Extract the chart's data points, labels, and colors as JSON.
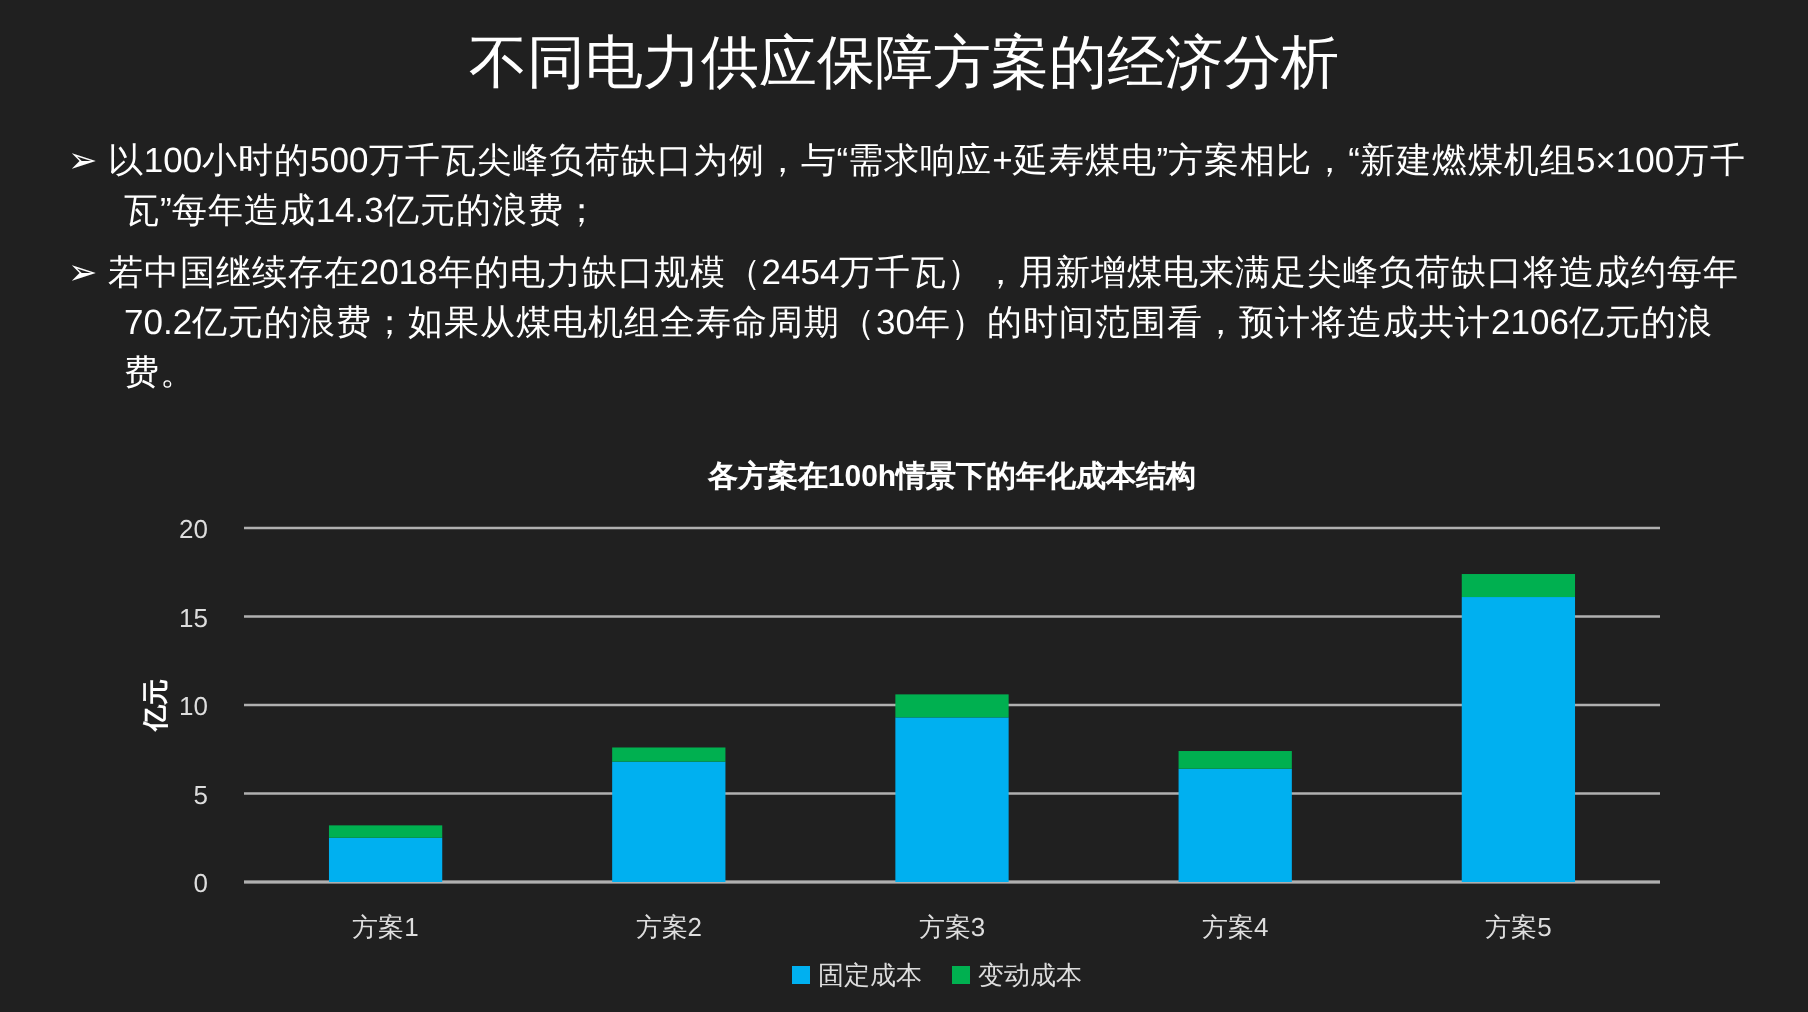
{
  "chart_data": {
    "type": "bar",
    "title": "不同电力供应保障方案的经济分析",
    "subtitle": "各方案在100h情景下的年化成本结构",
    "annotations": [
      "➢ 以100小时的500万千瓦尖峰负荷缺口为例，与“需求响应+延寿煤电”方案相比，“新建燃煤机组5×100万千瓦”每年造成14.3亿元的浪费；",
      "➢ 若中国继续存在2018年的电力缺口规模（2454万千瓦），用新增煤电来满足尖峰负荷缺口将造成约每年70.2亿元的浪费；如果从煤电机组全寿命周期（30年）的时间范围看，预计将造成共计2106亿元的浪费。"
    ],
    "ylabel": "亿元",
    "categories": [
      "方案1",
      "方案2",
      "方案3",
      "方案4",
      "方案5"
    ],
    "stacked": true,
    "series": [
      {
        "name": "固定成本",
        "color": "#00b0f0",
        "values": [
          2.5,
          6.8,
          9.3,
          6.4,
          16.1
        ]
      },
      {
        "name": "变动成本",
        "color": "#00b050",
        "values": [
          0.7,
          0.8,
          1.3,
          1.0,
          1.3
        ]
      }
    ],
    "ylim": [
      0,
      20
    ],
    "yticks": [
      0,
      5,
      10,
      15,
      20
    ],
    "grid": "y",
    "legend": "bottom"
  }
}
